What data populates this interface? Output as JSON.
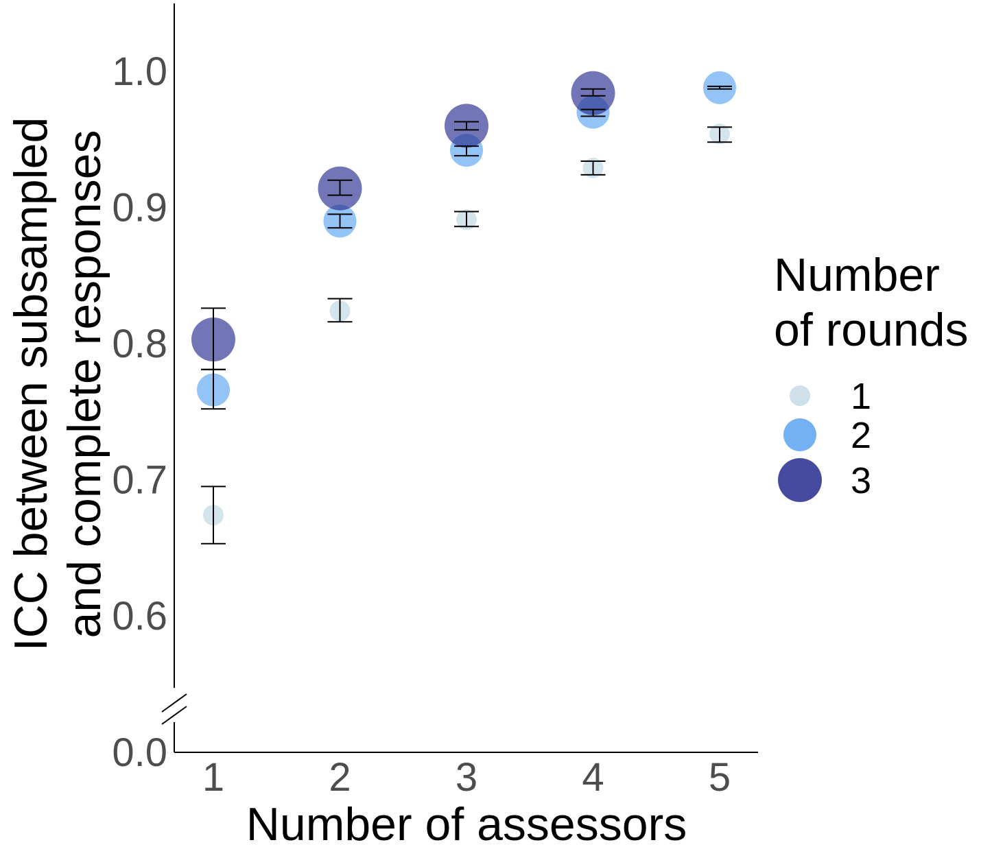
{
  "chart_data": {
    "type": "scatter",
    "xlabel": "Number of assessors",
    "ylabel_lines": [
      "ICC between subsampled",
      "and complete responses"
    ],
    "x_ticks": [
      1,
      2,
      3,
      4,
      5
    ],
    "y_ticks": [
      "1.0",
      "0.9",
      "0.8",
      "0.7",
      "0.6"
    ],
    "y_break_tick": "0.0",
    "xlim": [
      0.7,
      5.3
    ],
    "ylim": [
      0.55,
      1.05
    ],
    "y_axis_break": true,
    "legend": {
      "title_lines": [
        "Number",
        "of rounds"
      ],
      "position": "right",
      "entries": [
        {
          "label": "1",
          "color": "#c6dbe6"
        },
        {
          "label": "2",
          "color": "#5ba3f0"
        },
        {
          "label": "3",
          "color": "#272c8f"
        }
      ]
    },
    "series": [
      {
        "name": "1",
        "color": "#c6dbe6",
        "x": [
          1,
          2,
          3,
          4,
          5
        ],
        "y": [
          0.674,
          0.824,
          0.891,
          0.929,
          0.954
        ],
        "ymin": [
          0.653,
          0.816,
          0.886,
          0.924,
          0.948
        ],
        "ymax": [
          0.695,
          0.833,
          0.897,
          0.934,
          0.959
        ]
      },
      {
        "name": "2",
        "color": "#5ba3f0",
        "x": [
          1,
          2,
          3,
          4,
          5
        ],
        "y": [
          0.766,
          0.89,
          0.942,
          0.97,
          0.988
        ],
        "ymin": [
          0.752,
          0.885,
          0.938,
          0.967,
          0.987
        ],
        "ymax": [
          0.781,
          0.895,
          0.945,
          0.972,
          0.989
        ]
      },
      {
        "name": "3",
        "color": "#272c8f",
        "x": [
          1,
          2,
          3,
          4
        ],
        "y": [
          0.803,
          0.914,
          0.96,
          0.984
        ],
        "ymin": [
          0.781,
          0.909,
          0.957,
          0.982
        ],
        "ymax": [
          0.826,
          0.92,
          0.963,
          0.987
        ]
      }
    ]
  }
}
